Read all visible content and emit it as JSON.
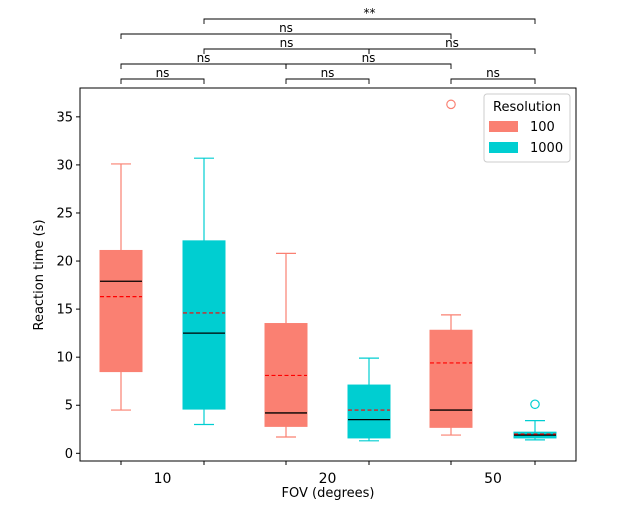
{
  "chart_data": {
    "type": "box",
    "title": "",
    "xlabel": "FOV (degrees)",
    "ylabel": "Reaction time (s)",
    "ylim": [
      -0.8,
      38
    ],
    "yticks": [
      0,
      5,
      10,
      15,
      20,
      25,
      30,
      35
    ],
    "categories": [
      "10",
      "20",
      "50"
    ],
    "legend": {
      "title": "Resolution",
      "placement": "top-right",
      "entries": [
        {
          "label": "100",
          "color": "#FA8072"
        },
        {
          "label": "1000",
          "color": "#00CED1"
        }
      ]
    },
    "series": [
      {
        "name": "100",
        "color": "#FA8072",
        "boxes": [
          {
            "category": "10",
            "whisker_low": 4.5,
            "q1": 8.5,
            "median": 17.9,
            "q3": 21.1,
            "whisker_high": 30.1,
            "mean": 16.3,
            "outliers": []
          },
          {
            "category": "20",
            "whisker_low": 1.7,
            "q1": 2.8,
            "median": 4.2,
            "q3": 13.5,
            "whisker_high": 20.8,
            "mean": 8.1,
            "outliers": []
          },
          {
            "category": "50",
            "whisker_low": 1.9,
            "q1": 2.7,
            "median": 4.5,
            "q3": 12.8,
            "whisker_high": 14.4,
            "mean": 9.4,
            "outliers": [
              36.3
            ]
          }
        ]
      },
      {
        "name": "1000",
        "color": "#00CED1",
        "boxes": [
          {
            "category": "10",
            "whisker_low": 3.0,
            "q1": 4.6,
            "median": 12.5,
            "q3": 22.1,
            "whisker_high": 30.7,
            "mean": 14.6,
            "outliers": []
          },
          {
            "category": "20",
            "whisker_low": 1.3,
            "q1": 1.6,
            "median": 3.5,
            "q3": 7.1,
            "whisker_high": 9.9,
            "mean": 4.5,
            "outliers": []
          },
          {
            "category": "50",
            "whisker_low": 1.4,
            "q1": 1.6,
            "median": 1.9,
            "q3": 2.2,
            "whisker_high": 3.4,
            "mean": 2.0,
            "outliers": [
              5.1
            ]
          }
        ]
      }
    ],
    "median_line_color": "#000000",
    "mean_line_color": "#FF0000",
    "mean_line_style": "dashed",
    "significance": [
      {
        "from": "10/100",
        "to": "10/1000",
        "label": "ns"
      },
      {
        "from": "20/100",
        "to": "20/1000",
        "label": "ns"
      },
      {
        "from": "50/100",
        "to": "50/1000",
        "label": "ns"
      },
      {
        "from": "10/100",
        "to": "20/100",
        "label": "ns"
      },
      {
        "from": "20/100",
        "to": "50/100",
        "label": "ns"
      },
      {
        "from": "10/1000",
        "to": "20/1000",
        "label": "ns"
      },
      {
        "from": "20/1000",
        "to": "50/1000",
        "label": "ns"
      },
      {
        "from": "10/100",
        "to": "50/100",
        "label": "ns"
      },
      {
        "from": "10/1000",
        "to": "50/1000",
        "label": "**"
      }
    ]
  }
}
